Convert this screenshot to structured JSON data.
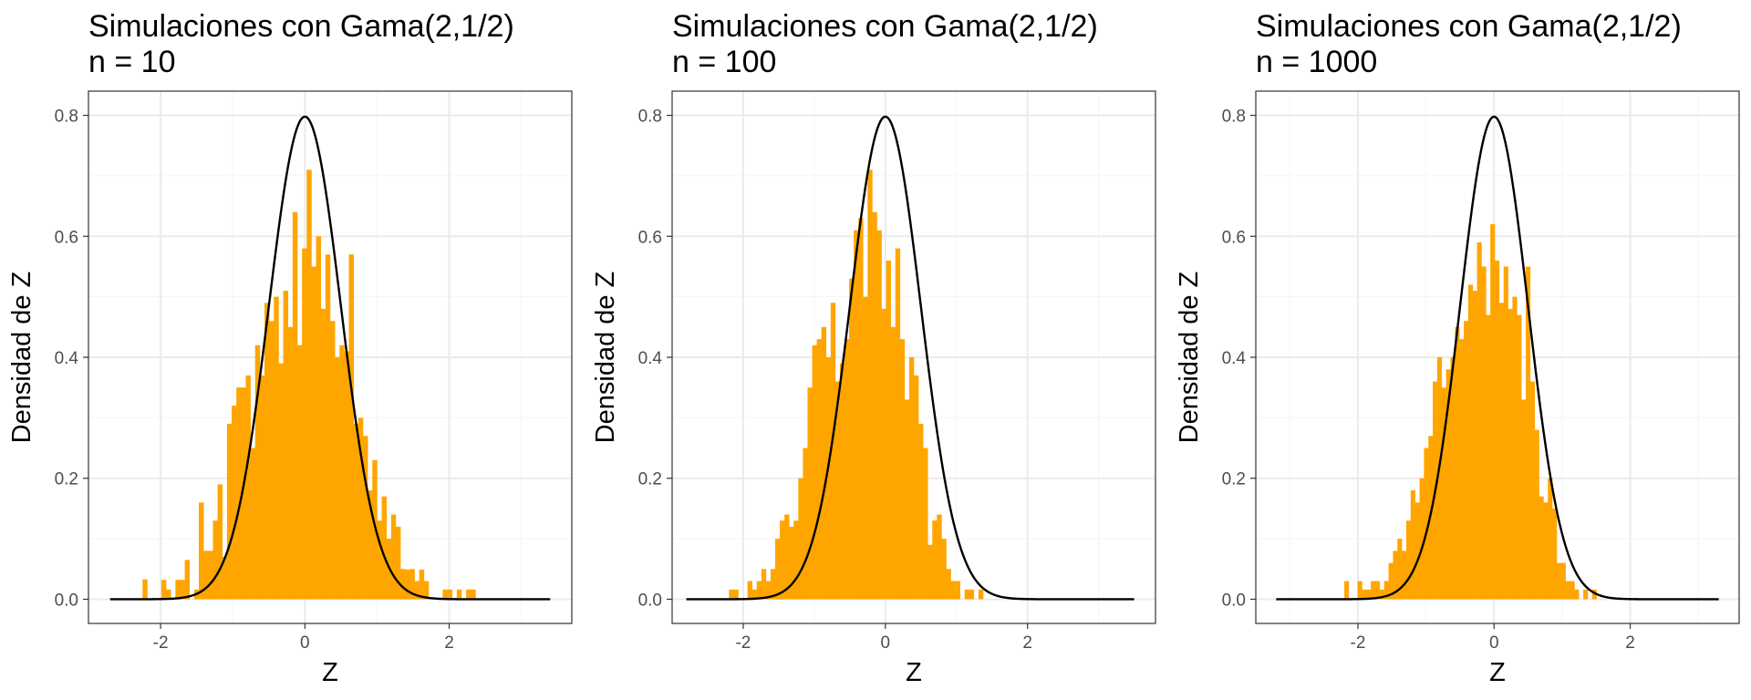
{
  "colors": {
    "bar_fill": "#FFA500",
    "curve": "#000000",
    "grid_major": "#ebebeb",
    "grid_minor": "#f5f5f5",
    "panel_border": "#333333",
    "tick_text": "#4d4d4d"
  },
  "chart_data": [
    {
      "type": "bar",
      "overlay": "normal density curve N(0, 0.5)",
      "title": "Simulaciones con Gama(2,1/2)",
      "subtitle": "n = 10",
      "xlabel": "Z",
      "ylabel": "Densidad de Z",
      "xlim": [
        -3.0,
        3.7
      ],
      "ylim": [
        -0.04,
        0.84
      ],
      "xticks": [
        -2,
        0,
        2
      ],
      "xtick_labels": [
        "-2",
        "0",
        "2"
      ],
      "yticks": [
        0.0,
        0.2,
        0.4,
        0.6,
        0.8
      ],
      "ytick_labels": [
        "0.0",
        "0.2",
        "0.4",
        "0.6",
        "0.8"
      ],
      "grid": true,
      "curve_x_range": [
        -2.7,
        3.4
      ],
      "bin_width": 0.065,
      "bin_start": -2.25,
      "values": [
        0.033,
        0,
        0,
        0,
        0.032,
        0.016,
        0,
        0.032,
        0.032,
        0.065,
        0,
        0.016,
        0.16,
        0.08,
        0.08,
        0.13,
        0.19,
        0.07,
        0.29,
        0.32,
        0.35,
        0.35,
        0.37,
        0.25,
        0.42,
        0.37,
        0.49,
        0.46,
        0.5,
        0.39,
        0.51,
        0.45,
        0.64,
        0.42,
        0.58,
        0.71,
        0.55,
        0.6,
        0.48,
        0.57,
        0.46,
        0.4,
        0.42,
        0.41,
        0.57,
        0.29,
        0.3,
        0.27,
        0.18,
        0.23,
        0.13,
        0.17,
        0.1,
        0.14,
        0.12,
        0.05,
        0.049,
        0.05,
        0.03,
        0.049,
        0.03,
        0,
        0,
        0,
        0.016,
        0.016,
        0,
        0.016,
        0,
        0.016,
        0.016
      ]
    },
    {
      "type": "bar",
      "overlay": "normal density curve N(0, 0.5)",
      "title": "Simulaciones con Gama(2,1/2)",
      "subtitle": "n = 100",
      "xlabel": "Z",
      "ylabel": "Densidad de Z",
      "xlim": [
        -3.0,
        3.8
      ],
      "ylim": [
        -0.04,
        0.84
      ],
      "xticks": [
        -2,
        0,
        2
      ],
      "xtick_labels": [
        "-2",
        "0",
        "2"
      ],
      "yticks": [
        0.0,
        0.2,
        0.4,
        0.6,
        0.8
      ],
      "ytick_labels": [
        "0.0",
        "0.2",
        "0.4",
        "0.6",
        "0.8"
      ],
      "grid": true,
      "curve_x_range": [
        -2.8,
        3.5
      ],
      "bin_width": 0.065,
      "bin_start": -2.2,
      "values": [
        0.016,
        0.016,
        0,
        0,
        0.03,
        0.016,
        0.03,
        0.05,
        0.03,
        0.05,
        0.1,
        0.13,
        0.14,
        0.12,
        0.13,
        0.2,
        0.25,
        0.35,
        0.42,
        0.43,
        0.45,
        0.4,
        0.49,
        0.36,
        0.39,
        0.43,
        0.53,
        0.61,
        0.63,
        0.5,
        0.71,
        0.64,
        0.61,
        0.48,
        0.56,
        0.45,
        0.58,
        0.43,
        0.33,
        0.4,
        0.37,
        0.29,
        0.25,
        0.09,
        0.13,
        0.14,
        0.1,
        0.05,
        0.03,
        0.03,
        0,
        0.016,
        0.016,
        0,
        0.016
      ]
    },
    {
      "type": "bar",
      "overlay": "normal density curve N(0, 0.5)",
      "title": "Simulaciones con Gama(2,1/2)",
      "subtitle": "n = 1000",
      "xlabel": "Z",
      "ylabel": "Densidad de Z",
      "xlim": [
        -3.5,
        3.6
      ],
      "ylim": [
        -0.04,
        0.84
      ],
      "xticks": [
        -2,
        0,
        2
      ],
      "xtick_labels": [
        "-2",
        "0",
        "2"
      ],
      "yticks": [
        0.0,
        0.2,
        0.4,
        0.6,
        0.8
      ],
      "ytick_labels": [
        "0.0",
        "0.2",
        "0.4",
        "0.6",
        "0.8"
      ],
      "grid": true,
      "curve_x_range": [
        -3.2,
        3.3
      ],
      "bin_width": 0.065,
      "bin_start": -2.2,
      "values": [
        0.03,
        0,
        0,
        0.03,
        0.016,
        0.016,
        0.03,
        0.03,
        0.016,
        0.03,
        0.06,
        0.08,
        0.1,
        0.08,
        0.13,
        0.18,
        0.16,
        0.2,
        0.25,
        0.27,
        0.36,
        0.4,
        0.35,
        0.38,
        0.4,
        0.45,
        0.43,
        0.46,
        0.52,
        0.51,
        0.59,
        0.55,
        0.47,
        0.62,
        0.56,
        0.49,
        0.55,
        0.48,
        0.5,
        0.47,
        0.33,
        0.55,
        0.36,
        0.28,
        0.17,
        0.16,
        0.2,
        0.15,
        0.06,
        0.06,
        0.03,
        0.03,
        0.016,
        0,
        0.016,
        0,
        0.016
      ]
    }
  ]
}
